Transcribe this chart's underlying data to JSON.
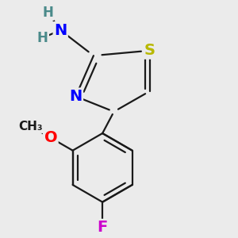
{
  "background_color": "#ebebeb",
  "bond_color": "#1a1a1a",
  "S_color": "#b8b800",
  "N_color": "#0000ff",
  "O_color": "#ff0000",
  "F_color": "#cc00cc",
  "H_color": "#4a8a8a",
  "bond_width": 1.6,
  "font_size_atom": 14,
  "font_size_H": 12,
  "figsize": [
    3.0,
    3.0
  ],
  "dpi": 100,
  "xlim": [
    0.05,
    0.95
  ],
  "ylim": [
    0.05,
    0.95
  ]
}
